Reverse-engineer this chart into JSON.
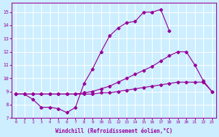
{
  "line1_x": [
    0,
    1,
    2,
    3,
    4,
    5,
    6,
    7,
    8,
    9,
    10,
    11,
    12,
    13,
    14,
    15,
    16,
    17,
    18
  ],
  "line1_y": [
    8.8,
    8.8,
    8.4,
    7.8,
    7.8,
    7.7,
    7.4,
    7.8,
    9.6,
    10.7,
    12.0,
    13.2,
    13.8,
    14.2,
    14.3,
    15.0,
    15.0,
    15.2,
    13.6
  ],
  "line2_x": [
    0,
    1,
    2,
    3,
    4,
    5,
    6,
    7,
    8,
    9,
    10,
    11,
    12,
    13,
    14,
    15,
    16,
    17,
    18,
    19,
    20,
    21,
    22,
    23
  ],
  "line2_y": [
    8.8,
    8.8,
    8.8,
    8.8,
    8.8,
    8.8,
    8.8,
    8.8,
    8.9,
    9.0,
    9.2,
    9.4,
    9.7,
    10.0,
    10.3,
    10.6,
    10.9,
    11.3,
    11.7,
    12.0,
    12.0,
    11.0,
    9.8,
    9.0
  ],
  "line3_x": [
    0,
    1,
    2,
    3,
    4,
    5,
    6,
    7,
    8,
    9,
    10,
    11,
    12,
    13,
    14,
    15,
    16,
    17,
    18,
    19,
    20,
    21,
    22,
    23
  ],
  "line3_y": [
    8.8,
    8.8,
    8.8,
    8.8,
    8.8,
    8.8,
    8.8,
    8.8,
    8.8,
    8.8,
    8.9,
    8.9,
    9.0,
    9.1,
    9.2,
    9.3,
    9.4,
    9.5,
    9.6,
    9.7,
    9.7,
    9.7,
    9.7,
    9.0
  ],
  "color": "#990099",
  "bg_color": "#cceeff",
  "grid_color": "#ffffff",
  "xlabel": "Windchill (Refroidissement éolien,°C)",
  "xlim": [
    -0.5,
    23.5
  ],
  "ylim": [
    7,
    15.7
  ],
  "yticks": [
    7,
    8,
    9,
    10,
    11,
    12,
    13,
    14,
    15
  ],
  "xticks": [
    0,
    1,
    2,
    3,
    4,
    5,
    6,
    7,
    8,
    9,
    10,
    11,
    12,
    13,
    14,
    15,
    16,
    17,
    18,
    19,
    20,
    21,
    22,
    23
  ]
}
